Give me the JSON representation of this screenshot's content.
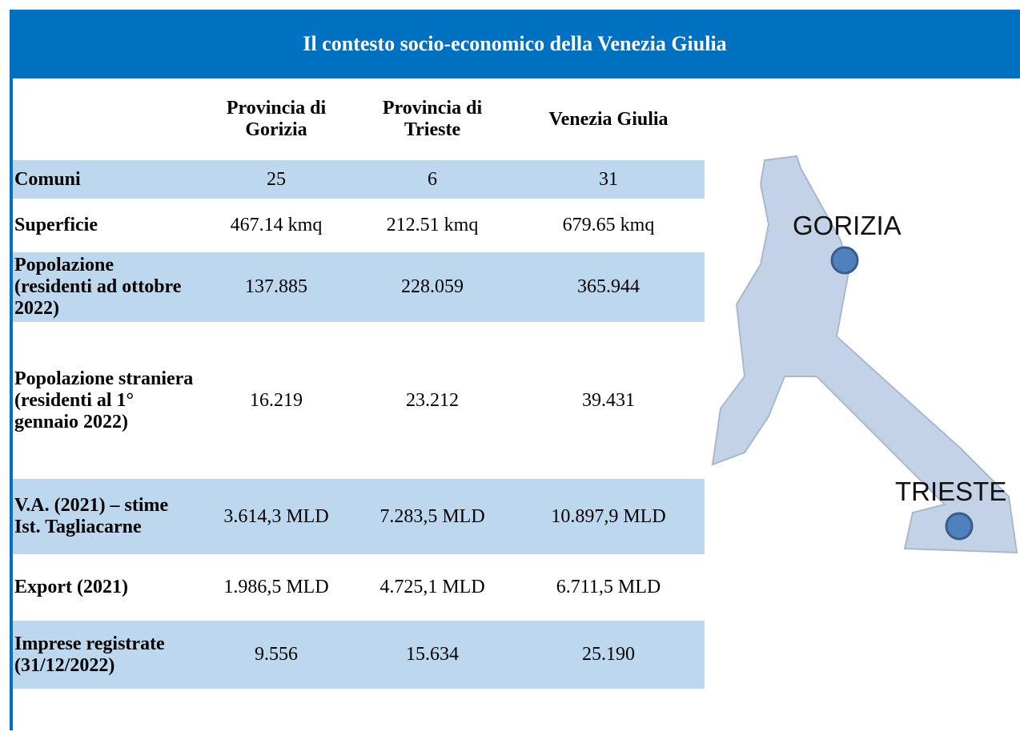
{
  "header": {
    "title": "Il contesto socio-economico della Venezia Giulia"
  },
  "table": {
    "columns": [
      "Provincia di Gorizia",
      "Provincia di Trieste",
      "Venezia Giulia"
    ],
    "rows": [
      [
        "Comuni",
        "25",
        "6",
        "31"
      ],
      [
        "Superficie",
        "467.14 kmq",
        "212.51 kmq",
        "679.65 kmq"
      ],
      [
        "Popolazione (residenti ad ottobre 2022)",
        "137.885",
        "228.059",
        "365.944"
      ],
      [
        "Popolazione straniera (residenti al 1° gennaio 2022)",
        "16.219",
        "23.212",
        "39.431"
      ],
      [
        "V.A. (2021) – stime Ist. Tagliacarne",
        "3.614,3 MLD",
        "7.283,5 MLD",
        "10.897,9 MLD"
      ],
      [
        "Export (2021)",
        "1.986,5 MLD",
        "4.725,1 MLD",
        "6.711,5 MLD"
      ],
      [
        "Imprese registrate (31/12/2022)",
        "9.556",
        "15.634",
        "25.190"
      ]
    ]
  },
  "map": {
    "labels": [
      "GORIZIA",
      "TRIESTE"
    ]
  }
}
